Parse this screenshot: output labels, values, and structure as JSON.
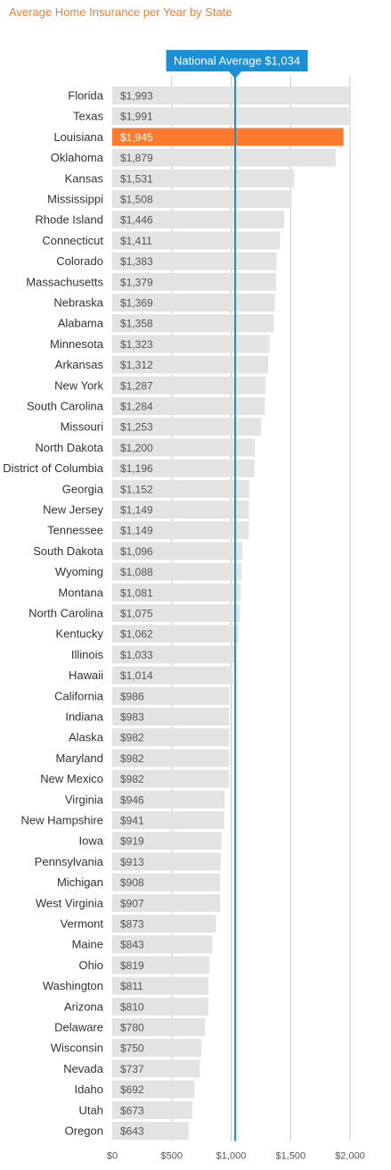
{
  "chart_data": {
    "type": "bar",
    "orientation": "horizontal",
    "title": "Average Home Insurance per Year by State",
    "xlim": [
      0,
      2000
    ],
    "x_ticks": [
      0,
      500,
      1000,
      1500,
      2000
    ],
    "x_tick_labels": [
      "$0",
      "$500",
      "$1,000",
      "$1,500",
      "$2,000"
    ],
    "grid": "vertical",
    "reference_line": {
      "value": 1034,
      "label": "National Average $1,034",
      "color": "#1a8fd6"
    },
    "highlight_category": "Louisiana",
    "colors": {
      "bar": "#e3e3e3",
      "highlight": "#ff7a2e",
      "highlight_label": "#ff7a2e",
      "reference": "#1a8fd6",
      "gridline": "#c8c8c8"
    },
    "categories": [
      "Florida",
      "Texas",
      "Louisiana",
      "Oklahoma",
      "Kansas",
      "Mississippi",
      "Rhode Island",
      "Connecticut",
      "Colorado",
      "Massachusetts",
      "Nebraska",
      "Alabama",
      "Minnesota",
      "Arkansas",
      "New York",
      "South Carolina",
      "Missouri",
      "North Dakota",
      "District of Columbia",
      "Georgia",
      "New Jersey",
      "Tennessee",
      "South Dakota",
      "Wyoming",
      "Montana",
      "North Carolina",
      "Kentucky",
      "Illinois",
      "Hawaii",
      "California",
      "Indiana",
      "Alaska",
      "Maryland",
      "New Mexico",
      "Virginia",
      "New Hampshire",
      "Iowa",
      "Pennsylvania",
      "Michigan",
      "West Virginia",
      "Vermont",
      "Maine",
      "Ohio",
      "Washington",
      "Arizona",
      "Delaware",
      "Wisconsin",
      "Nevada",
      "Idaho",
      "Utah",
      "Oregon"
    ],
    "values": [
      1993,
      1991,
      1945,
      1879,
      1531,
      1508,
      1446,
      1411,
      1383,
      1379,
      1369,
      1358,
      1323,
      1312,
      1287,
      1284,
      1253,
      1200,
      1196,
      1152,
      1149,
      1149,
      1096,
      1088,
      1081,
      1075,
      1062,
      1033,
      1014,
      986,
      983,
      982,
      982,
      982,
      946,
      941,
      919,
      913,
      908,
      907,
      873,
      843,
      819,
      811,
      810,
      780,
      750,
      737,
      692,
      673,
      643
    ],
    "value_labels": [
      "$1,993",
      "$1,991",
      "$1,945",
      "$1,879",
      "$1,531",
      "$1,508",
      "$1,446",
      "$1,411",
      "$1,383",
      "$1,379",
      "$1,369",
      "$1,358",
      "$1,323",
      "$1,312",
      "$1,287",
      "$1,284",
      "$1,253",
      "$1,200",
      "$1,196",
      "$1,152",
      "$1,149",
      "$1,149",
      "$1,096",
      "$1,088",
      "$1,081",
      "$1,075",
      "$1,062",
      "$1,033",
      "$1,014",
      "$986",
      "$983",
      "$982",
      "$982",
      "$982",
      "$946",
      "$941",
      "$919",
      "$913",
      "$908",
      "$907",
      "$873",
      "$843",
      "$819",
      "$811",
      "$810",
      "$780",
      "$750",
      "$737",
      "$692",
      "$673",
      "$643"
    ]
  }
}
